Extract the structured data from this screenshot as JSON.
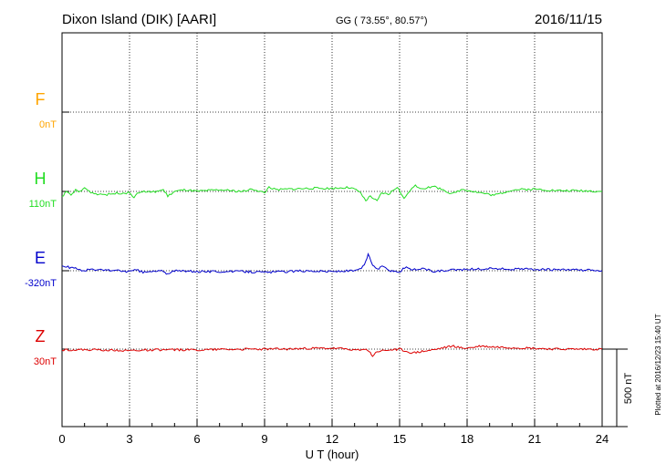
{
  "header": {
    "station": "Dixon Island (DIK)  [AARI]",
    "coords": "GG ( 73.55°,  80.57°)",
    "date": "2016/11/15"
  },
  "footer": {
    "plotted": "Plotted at 2016/12/23 15:40 UT"
  },
  "scale_bar": {
    "label": "500 nT"
  },
  "colors": {
    "F": "#ffa500",
    "H": "#22dd22",
    "E": "#0000cc",
    "Z": "#dd0000"
  },
  "chart_data": {
    "type": "line",
    "title": "",
    "xlabel": "U T (hour)",
    "ylabel": "",
    "xlim": [
      0,
      24
    ],
    "x_ticks": [
      "0",
      "3",
      "6",
      "9",
      "12",
      "15",
      "18",
      "21",
      "24"
    ],
    "grid": true,
    "channels": [
      {
        "name": "F",
        "baseline_label": "0nT",
        "values": []
      },
      {
        "name": "H",
        "baseline_label": "110nT",
        "points": [
          [
            0,
            -30
          ],
          [
            0.2,
            -5
          ],
          [
            0.4,
            -25
          ],
          [
            0.6,
            10
          ],
          [
            0.8,
            -5
          ],
          [
            1.0,
            25
          ],
          [
            1.2,
            0
          ],
          [
            1.5,
            -15
          ],
          [
            2.0,
            -20
          ],
          [
            2.5,
            -10
          ],
          [
            3.0,
            -10
          ],
          [
            3.2,
            -35
          ],
          [
            3.5,
            0
          ],
          [
            4.0,
            -5
          ],
          [
            4.5,
            10
          ],
          [
            4.7,
            -30
          ],
          [
            5.0,
            0
          ],
          [
            5.5,
            10
          ],
          [
            6.0,
            0
          ],
          [
            6.5,
            5
          ],
          [
            7.0,
            10
          ],
          [
            7.5,
            5
          ],
          [
            8.0,
            0
          ],
          [
            8.5,
            15
          ],
          [
            9.0,
            -10
          ],
          [
            9.2,
            30
          ],
          [
            9.5,
            10
          ],
          [
            10,
            15
          ],
          [
            11,
            20
          ],
          [
            12,
            20
          ],
          [
            12.8,
            25
          ],
          [
            13.2,
            0
          ],
          [
            13.5,
            -60
          ],
          [
            13.7,
            -30
          ],
          [
            14,
            -65
          ],
          [
            14.2,
            -10
          ],
          [
            14.5,
            -20
          ],
          [
            14.9,
            30
          ],
          [
            15.2,
            -50
          ],
          [
            15.4,
            0
          ],
          [
            15.7,
            35
          ],
          [
            16,
            20
          ],
          [
            16.5,
            30
          ],
          [
            17,
            10
          ],
          [
            17.3,
            -20
          ],
          [
            17.8,
            15
          ],
          [
            18.3,
            0
          ],
          [
            19.2,
            -25
          ],
          [
            20,
            10
          ],
          [
            21,
            15
          ],
          [
            22,
            5
          ],
          [
            23,
            5
          ],
          [
            24,
            0
          ]
        ]
      },
      {
        "name": "E",
        "baseline_label": "-320nT",
        "points": [
          [
            0,
            30
          ],
          [
            0.4,
            20
          ],
          [
            0.8,
            10
          ],
          [
            1.0,
            -5
          ],
          [
            1.2,
            10
          ],
          [
            1.5,
            5
          ],
          [
            2.0,
            5
          ],
          [
            2.5,
            0
          ],
          [
            3.0,
            -5
          ],
          [
            3.3,
            5
          ],
          [
            3.6,
            -10
          ],
          [
            4.0,
            -5
          ],
          [
            4.5,
            0
          ],
          [
            4.7,
            -25
          ],
          [
            5.0,
            0
          ],
          [
            6,
            -5
          ],
          [
            7,
            -5
          ],
          [
            8,
            -5
          ],
          [
            9,
            -10
          ],
          [
            10,
            -5
          ],
          [
            11,
            0
          ],
          [
            12,
            -5
          ],
          [
            13,
            0
          ],
          [
            13.3,
            10
          ],
          [
            13.5,
            60
          ],
          [
            13.6,
            105
          ],
          [
            13.8,
            40
          ],
          [
            14,
            10
          ],
          [
            14.3,
            30
          ],
          [
            14.6,
            0
          ],
          [
            15.0,
            -5
          ],
          [
            15.3,
            25
          ],
          [
            15.6,
            5
          ],
          [
            16,
            15
          ],
          [
            16.5,
            -5
          ],
          [
            17,
            0
          ],
          [
            17.5,
            5
          ],
          [
            18,
            10
          ],
          [
            18.5,
            10
          ],
          [
            19,
            15
          ],
          [
            20,
            10
          ],
          [
            21,
            10
          ],
          [
            22,
            5
          ],
          [
            23,
            5
          ],
          [
            24,
            0
          ]
        ]
      },
      {
        "name": "Z",
        "baseline_label": "30nT",
        "points": [
          [
            0,
            -5
          ],
          [
            1,
            -5
          ],
          [
            2,
            -5
          ],
          [
            3,
            -10
          ],
          [
            4,
            -5
          ],
          [
            5,
            -5
          ],
          [
            6,
            -5
          ],
          [
            7,
            0
          ],
          [
            8,
            0
          ],
          [
            9,
            0
          ],
          [
            10,
            0
          ],
          [
            11,
            5
          ],
          [
            12,
            5
          ],
          [
            12.8,
            0
          ],
          [
            13.3,
            -10
          ],
          [
            13.5,
            5
          ],
          [
            13.7,
            -25
          ],
          [
            13.8,
            -45
          ],
          [
            14,
            -15
          ],
          [
            14.3,
            -10
          ],
          [
            14.6,
            -5
          ],
          [
            15,
            0
          ],
          [
            15.3,
            -15
          ],
          [
            15.6,
            -25
          ],
          [
            16,
            -15
          ],
          [
            16.5,
            -5
          ],
          [
            17,
            10
          ],
          [
            17.4,
            20
          ],
          [
            17.8,
            5
          ],
          [
            18.2,
            10
          ],
          [
            18.6,
            20
          ],
          [
            19,
            15
          ],
          [
            20,
            10
          ],
          [
            21,
            5
          ],
          [
            22,
            0
          ],
          [
            23,
            0
          ],
          [
            24,
            0
          ]
        ]
      }
    ]
  }
}
